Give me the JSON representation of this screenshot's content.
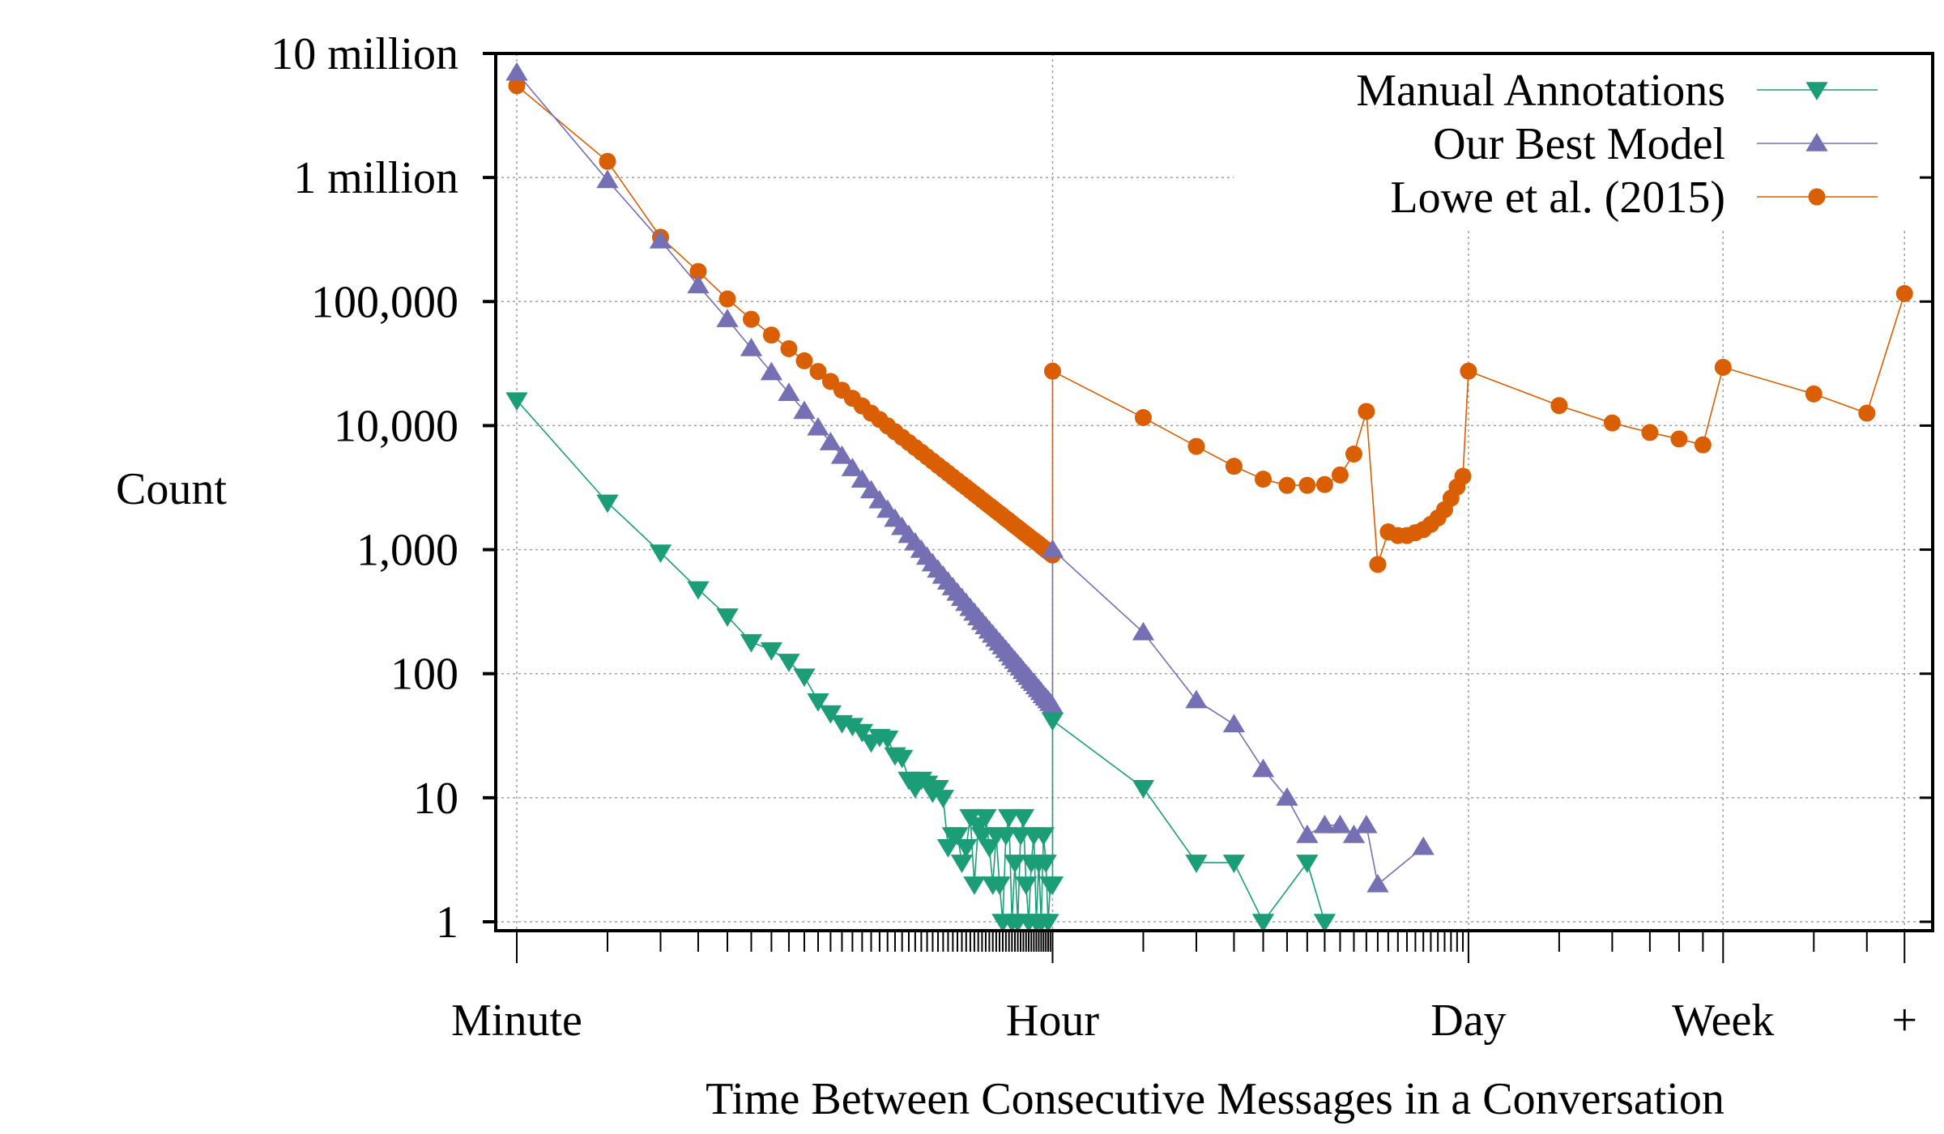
{
  "chart_data": {
    "type": "line",
    "title": "",
    "xlabel": "Time Between Consecutive Messages in a Conversation",
    "ylabel": "Count",
    "x_unit": "minutes",
    "x_scale": "log",
    "y_scale": "log",
    "xlim": [
      1,
      40320
    ],
    "ylim": [
      1,
      10000000
    ],
    "grid": true,
    "legend_position": "top-right",
    "xticks": [
      {
        "value": 1,
        "label": "Minute"
      },
      {
        "value": 60,
        "label": "Hour"
      },
      {
        "value": 1440,
        "label": "Day"
      },
      {
        "value": 10080,
        "label": "Week"
      },
      {
        "value": 40320,
        "label": "+"
      }
    ],
    "yticks": [
      {
        "value": 10000000,
        "label": "10 million"
      },
      {
        "value": 1000000,
        "label": "1 million"
      },
      {
        "value": 100000,
        "label": "100,000"
      },
      {
        "value": 10000,
        "label": "10,000"
      },
      {
        "value": 1000,
        "label": "1,000"
      },
      {
        "value": 100,
        "label": "100"
      },
      {
        "value": 10,
        "label": "10"
      },
      {
        "value": 1,
        "label": "1"
      }
    ],
    "series": [
      {
        "name": "Manual Annotations",
        "color": "#1b9e77",
        "marker": "triangle-down",
        "x": [
          1,
          2,
          3,
          4,
          5,
          6,
          7,
          8,
          9,
          10,
          11,
          12,
          13,
          14,
          15,
          16,
          17,
          18,
          19,
          20,
          21,
          22,
          23,
          24,
          25,
          26,
          27,
          28,
          29,
          30,
          31,
          32,
          33,
          34,
          35,
          36,
          37,
          38,
          39,
          40,
          41,
          42,
          43,
          44,
          45,
          46,
          47,
          48,
          49,
          50,
          51,
          52,
          53,
          54,
          55,
          56,
          57,
          58,
          59,
          60,
          60,
          120,
          180,
          240,
          300,
          420,
          480
        ],
        "y": [
          16000,
          2400,
          950,
          480,
          290,
          180,
          155,
          125,
          95,
          60,
          48,
          40,
          38,
          34,
          28,
          31,
          30,
          22,
          21,
          14,
          12,
          14,
          13,
          11,
          12,
          10,
          4,
          5,
          5,
          3,
          4,
          7,
          2,
          6,
          5,
          7,
          4,
          2,
          5,
          2,
          1,
          5,
          7,
          1,
          3,
          1,
          5,
          7,
          2,
          1,
          3,
          5,
          1,
          3,
          1,
          5,
          3,
          1,
          2,
          2,
          42,
          12,
          3,
          3,
          1,
          3,
          1
        ]
      },
      {
        "name": "Our Best Model",
        "color": "#7570b3",
        "marker": "triangle-up",
        "x": [
          1,
          2,
          3,
          4,
          5,
          6,
          7,
          8,
          9,
          10,
          11,
          12,
          13,
          14,
          15,
          16,
          17,
          18,
          19,
          20,
          21,
          22,
          23,
          24,
          25,
          26,
          27,
          28,
          29,
          30,
          31,
          32,
          33,
          34,
          35,
          36,
          37,
          38,
          39,
          40,
          41,
          42,
          43,
          44,
          45,
          46,
          47,
          48,
          49,
          50,
          51,
          52,
          53,
          54,
          55,
          56,
          57,
          58,
          59,
          60,
          60,
          120,
          180,
          240,
          300,
          360,
          420,
          480,
          540,
          600,
          660,
          720,
          1020
        ],
        "y": [
          7000000,
          950000,
          310000,
          135000,
          72000,
          42000,
          26900,
          18300,
          13100,
          9640,
          7330,
          5700,
          4530,
          3660,
          3000,
          2490,
          2090,
          1770,
          1520,
          1310,
          1140,
          995,
          875,
          774,
          689,
          615,
          552,
          497,
          449,
          407,
          371,
          338,
          310,
          284,
          261,
          241,
          222,
          206,
          191,
          178,
          166,
          155,
          145,
          135,
          127,
          119,
          112,
          105,
          99,
          94,
          88,
          84,
          79,
          75,
          71,
          67,
          64,
          61,
          58,
          55,
          1000,
          215,
          61,
          39,
          17,
          10,
          5,
          6,
          6,
          5,
          6,
          2,
          4
        ]
      },
      {
        "name": "Lowe et al. (2015)",
        "color": "#d95f02",
        "marker": "circle",
        "x": [
          1,
          2,
          3,
          4,
          5,
          6,
          7,
          8,
          9,
          10,
          11,
          12,
          13,
          14,
          15,
          16,
          17,
          18,
          19,
          20,
          21,
          22,
          23,
          24,
          25,
          26,
          27,
          28,
          29,
          30,
          31,
          32,
          33,
          34,
          35,
          36,
          37,
          38,
          39,
          40,
          41,
          42,
          43,
          44,
          45,
          46,
          47,
          48,
          49,
          50,
          51,
          52,
          53,
          54,
          55,
          56,
          57,
          58,
          59,
          60,
          60,
          120,
          180,
          240,
          300,
          360,
          420,
          480,
          540,
          600,
          660,
          720,
          780,
          840,
          900,
          960,
          1020,
          1080,
          1140,
          1200,
          1260,
          1320,
          1380,
          1440,
          2880,
          4320,
          5760,
          7200,
          8640,
          10080,
          20160,
          30240,
          40320
        ],
        "y": [
          5500000,
          1350000,
          330000,
          175000,
          105000,
          72000,
          53700,
          41700,
          33300,
          27300,
          22700,
          19300,
          16600,
          14400,
          12600,
          11200,
          9950,
          8930,
          8050,
          7310,
          6660,
          6100,
          5600,
          5170,
          4780,
          4440,
          4130,
          3850,
          3600,
          3380,
          3180,
          2990,
          2820,
          2670,
          2520,
          2390,
          2270,
          2160,
          2050,
          1960,
          1870,
          1780,
          1710,
          1630,
          1560,
          1500,
          1440,
          1380,
          1330,
          1280,
          1230,
          1190,
          1150,
          1110,
          1070,
          1030,
          998,
          966,
          935,
          906,
          27500,
          11600,
          6800,
          4700,
          3700,
          3300,
          3300,
          3350,
          4000,
          5900,
          13000,
          760,
          1390,
          1300,
          1300,
          1370,
          1450,
          1600,
          1800,
          2100,
          2600,
          3200,
          3900,
          27500,
          14500,
          10500,
          8800,
          7800,
          7000,
          29500,
          18000,
          12600,
          116000
        ]
      }
    ]
  }
}
